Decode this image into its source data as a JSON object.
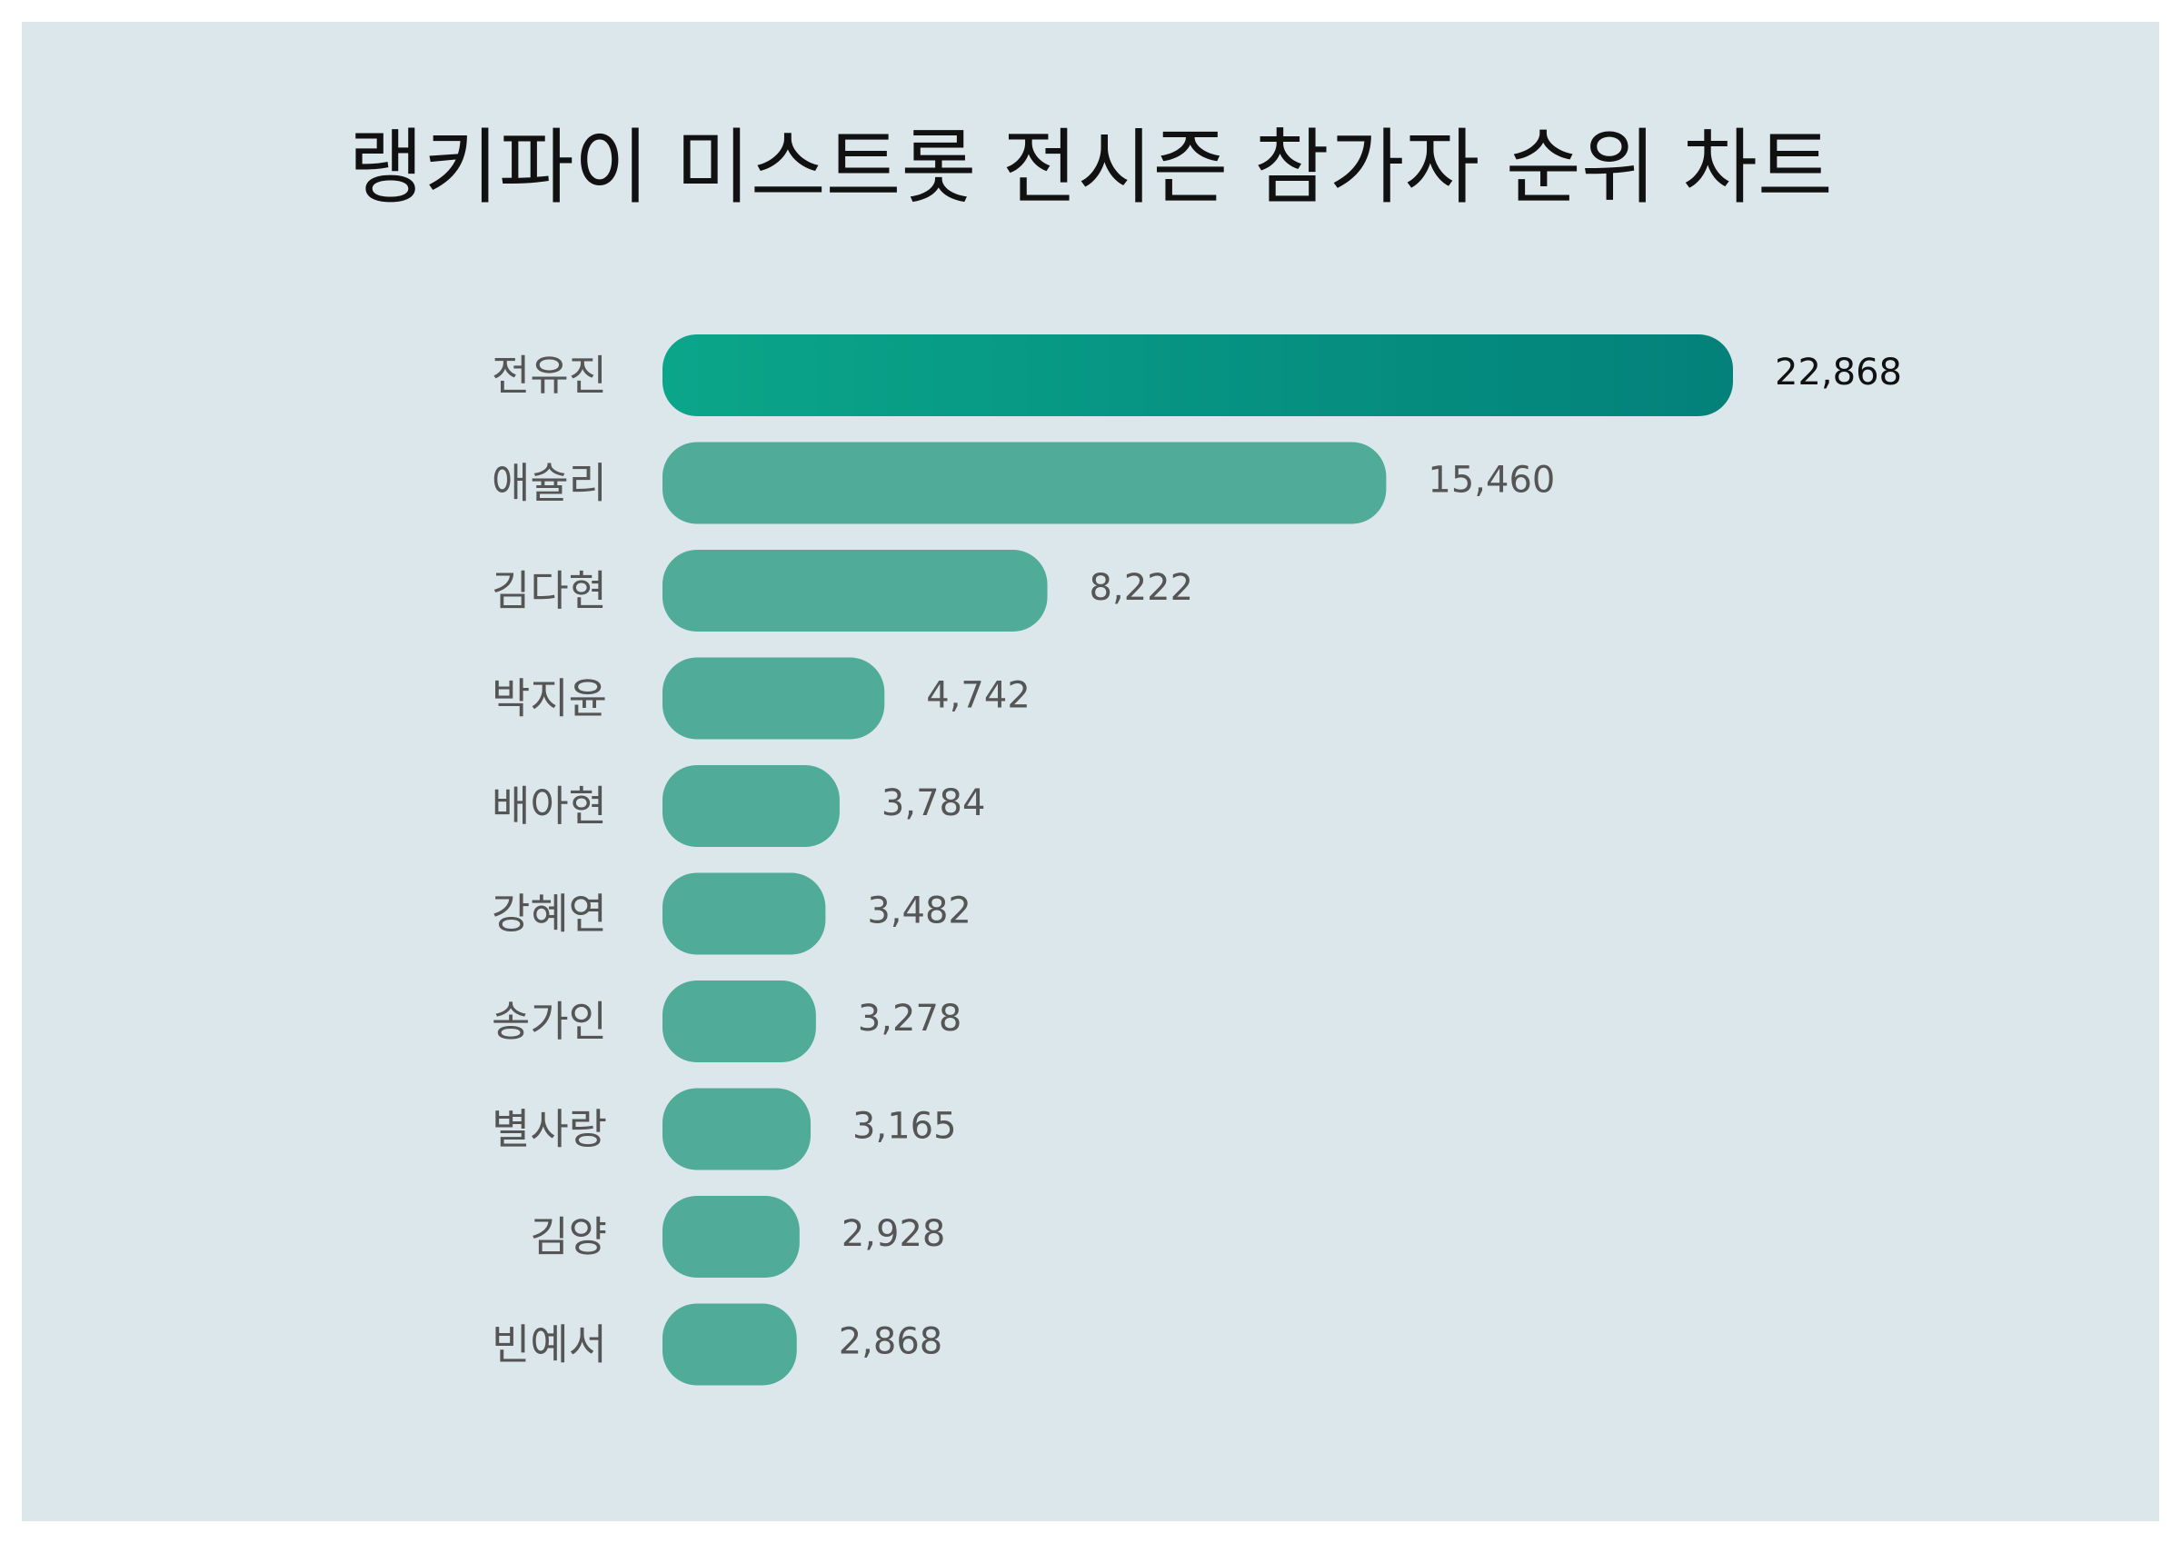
{
  "chart_data": {
    "type": "bar",
    "orientation": "horizontal",
    "title": "랭키파이 미스트롯 전시즌 참가자 순위 차트",
    "categories": [
      "전유진",
      "애슐리",
      "김다현",
      "박지윤",
      "배아현",
      "강혜연",
      "송가인",
      "별사랑",
      "김양",
      "빈예서"
    ],
    "values": [
      22868,
      15460,
      8222,
      4742,
      3784,
      3482,
      3278,
      3165,
      2928,
      2868
    ],
    "value_labels": [
      "22,868",
      "15,460",
      "8,222",
      "4,742",
      "3,784",
      "3,482",
      "3,278",
      "3,165",
      "2,928",
      "2,868"
    ],
    "grid": false,
    "legend": "none",
    "colors": {
      "background": "#dce7eb",
      "bar": "#50ab99",
      "top_bar_start": "#0aa68a",
      "top_bar_end": "#03817a"
    }
  }
}
